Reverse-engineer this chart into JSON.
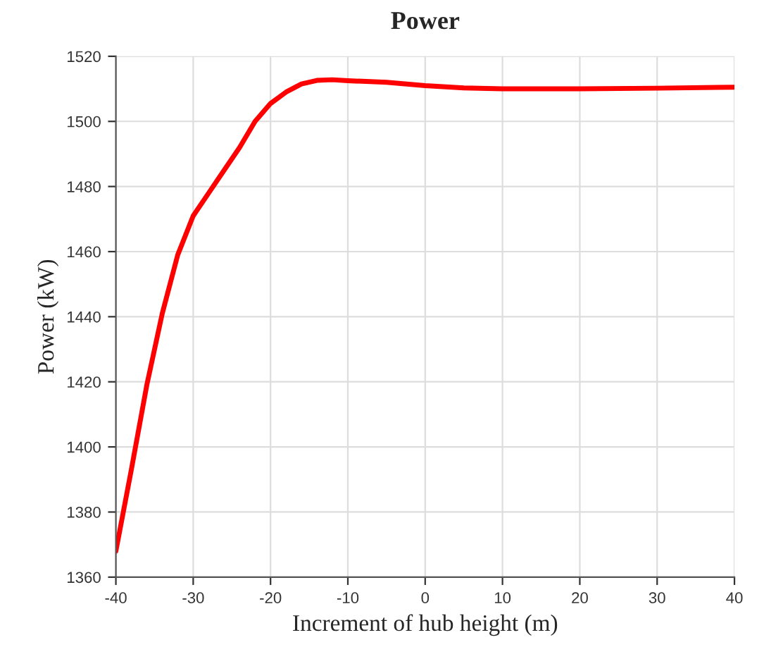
{
  "chart_data": {
    "type": "line",
    "title": "Power",
    "xlabel": "Increment of hub height (m)",
    "ylabel": "Power (kW)",
    "x": [
      -40,
      -38,
      -36,
      -34,
      -32,
      -30,
      -28,
      -26,
      -24,
      -22,
      -20,
      -18,
      -16,
      -14,
      -12,
      -10,
      -5,
      0,
      5,
      10,
      20,
      30,
      40
    ],
    "series": [
      {
        "color": "#ff0000",
        "values": [
          1368,
          1393,
          1419,
          1441,
          1459,
          1471,
          1478,
          1485,
          1492,
          1500,
          1505.5,
          1509,
          1511.5,
          1512.6,
          1512.8,
          1512.5,
          1512,
          1511,
          1510.3,
          1510,
          1510,
          1510.2,
          1510.5
        ]
      }
    ],
    "xlim": [
      -40,
      40
    ],
    "ylim": [
      1360,
      1520
    ],
    "xticks": [
      -40,
      -30,
      -20,
      -10,
      0,
      10,
      20,
      30,
      40
    ],
    "yticks": [
      1360,
      1380,
      1400,
      1420,
      1440,
      1460,
      1480,
      1500,
      1520
    ],
    "grid": true,
    "marker": "none",
    "line_style": "solid"
  }
}
